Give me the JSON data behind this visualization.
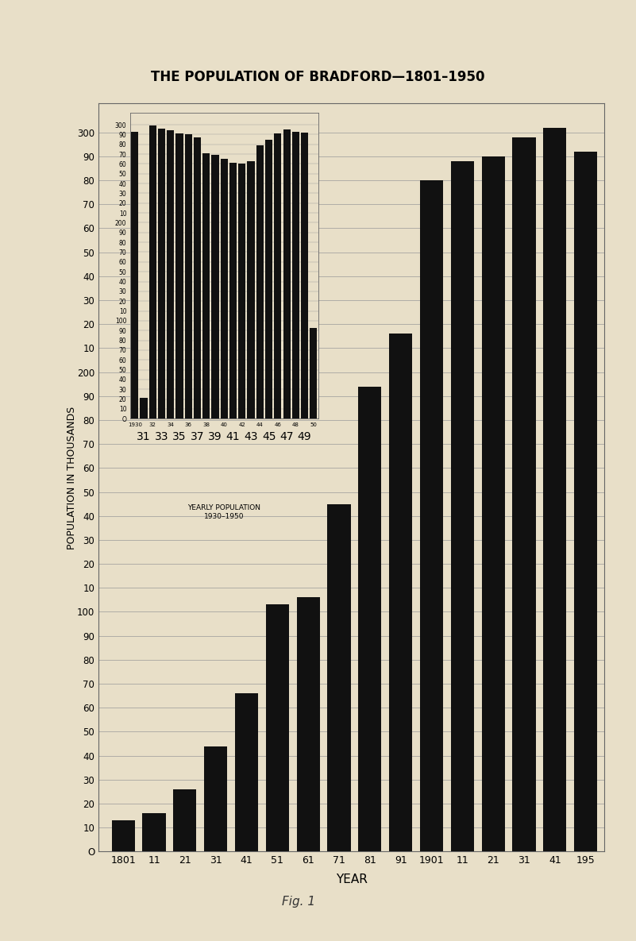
{
  "title": "THE POPULATION OF BRADFORD—1801–1950",
  "ylabel": "POPULATION IN THOUSANDS",
  "xlabel": "YEAR",
  "fig_caption": "Fig. 1",
  "background_color": "#e8dfc8",
  "bar_color": "#111111",
  "main_years": [
    1801,
    1811,
    1821,
    1831,
    1841,
    1851,
    1861,
    1871,
    1881,
    1891,
    1901,
    1911,
    1921,
    1931,
    1941,
    1951
  ],
  "main_values": [
    13,
    16,
    26,
    44,
    66,
    103,
    106,
    145,
    194,
    216,
    280,
    288,
    290,
    298,
    302,
    292
  ],
  "main_xlabels": [
    "1801",
    "11",
    "21",
    "31",
    "41",
    "51",
    "61",
    "71",
    "81",
    "91",
    "1901",
    "11",
    "21",
    "31",
    "41",
    "195"
  ],
  "inset_years": [
    1930,
    1931,
    1932,
    1933,
    1934,
    1935,
    1936,
    1937,
    1938,
    1939,
    1940,
    1941,
    1942,
    1943,
    1944,
    1945,
    1946,
    1947,
    1948,
    1949,
    1950
  ],
  "inset_values": [
    293,
    21,
    299,
    296,
    294,
    291,
    290,
    287,
    271,
    269,
    265,
    261,
    260,
    263,
    279,
    285,
    291,
    295,
    293,
    292,
    93
  ],
  "inset_label1": "YEARLY POPULATION",
  "inset_label2": "1930–1950"
}
